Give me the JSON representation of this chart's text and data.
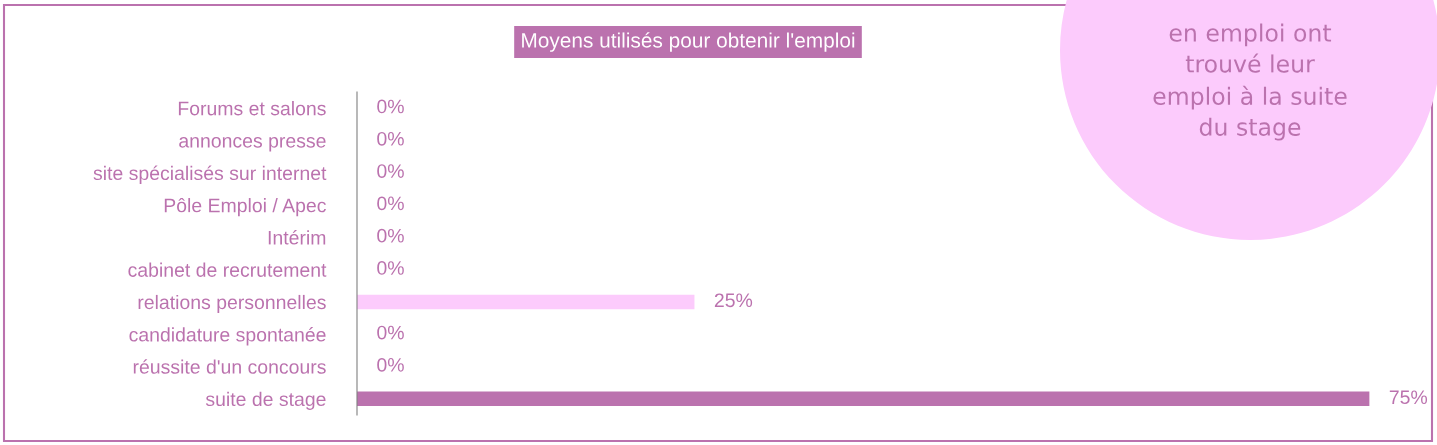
{
  "chart_data": {
    "type": "bar",
    "orientation": "horizontal",
    "title": "Moyens utilisés pour obtenir l'emploi",
    "categories": [
      "Forums et salons",
      "annonces presse",
      "site spécialisés sur internet",
      "Pôle Emploi / Apec",
      "Intérim",
      "cabinet de recrutement",
      "relations personnelles",
      "candidature spontanée",
      "réussite d'un concours",
      "suite de stage"
    ],
    "values": [
      0,
      0,
      0,
      0,
      0,
      0,
      25,
      0,
      0,
      75
    ],
    "colors": [
      "#bb72ae",
      "#bb72ae",
      "#bb72ae",
      "#bb72ae",
      "#bb72ae",
      "#bb72ae",
      "#fccbfc",
      "#bb72ae",
      "#bb72ae",
      "#bb72ae"
    ],
    "value_labels": [
      "0%",
      "0%",
      "0%",
      "0%",
      "0%",
      "0%",
      "25%",
      "0%",
      "0%",
      "75%"
    ],
    "tick_labels": "y",
    "grid": false,
    "annotations": [
      "en emploi ont\ntrouvé leur\nemploi à la suite\ndu stage"
    ]
  }
}
